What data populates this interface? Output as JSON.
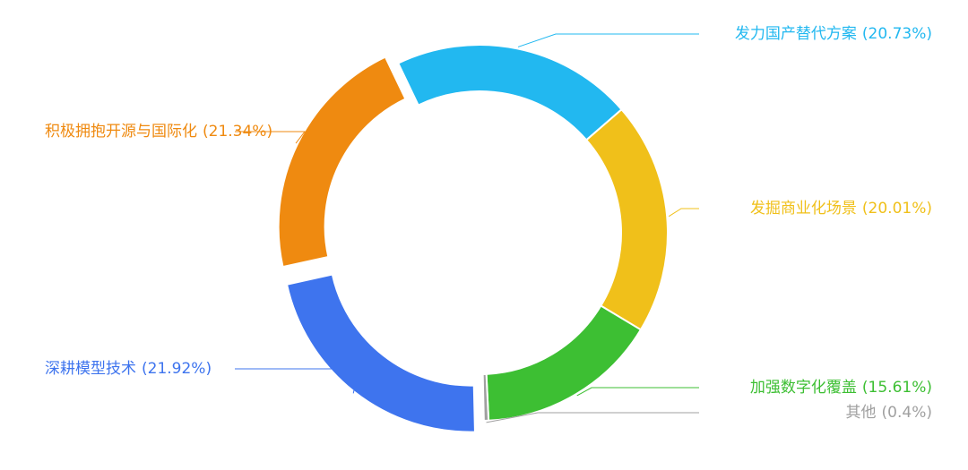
{
  "chart_data": {
    "type": "pie",
    "categories": [
      "发力国产替代方案",
      "发掘商业化场景",
      "加强数字化覆盖",
      "其他",
      "深耕模型技术",
      "积极拥抱开源与国际化"
    ],
    "values": [
      20.73,
      20.01,
      15.61,
      0.4,
      21.92,
      21.34
    ],
    "value_labels": [
      "(20.73%)",
      "(20.01%)",
      "(15.61%)",
      "(0.4%)",
      "(21.92%)",
      "(21.34%)"
    ],
    "colors": [
      "#22b8f0",
      "#f0c01a",
      "#3dbf33",
      "#a0a0a0",
      "#3e74ee",
      "#ef8a10"
    ]
  }
}
